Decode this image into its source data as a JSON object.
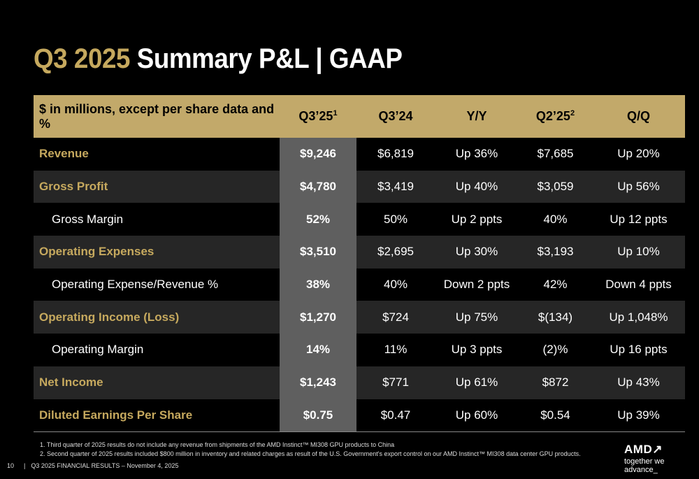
{
  "title": {
    "highlight": "Q3 2025",
    "rest": " Summary P&L  |  GAAP"
  },
  "table": {
    "headers": [
      "$ in millions, except per share data and %",
      "Q3’25",
      "Q3’24",
      "Y/Y",
      "Q2’25",
      "Q/Q"
    ],
    "header_sups": {
      "q3_25": "1",
      "q2_25": "2"
    },
    "rows": [
      {
        "label": "Revenue",
        "type": "main",
        "values": [
          "$9,246",
          "$6,819",
          "Up 36%",
          "$7,685",
          "Up 20%"
        ]
      },
      {
        "label": "Gross Profit",
        "type": "main",
        "values": [
          "$4,780",
          "$3,419",
          "Up 40%",
          "$3,059",
          "Up 56%"
        ]
      },
      {
        "label": "Gross Margin",
        "type": "sub",
        "values": [
          "52%",
          "50%",
          "Up 2 ppts",
          "40%",
          "Up 12 ppts"
        ]
      },
      {
        "label": "Operating Expenses",
        "type": "main",
        "values": [
          "$3,510",
          "$2,695",
          "Up 30%",
          "$3,193",
          "Up 10%"
        ]
      },
      {
        "label": "Operating Expense/Revenue %",
        "type": "sub",
        "values": [
          "38%",
          "40%",
          "Down 2 ppts",
          "42%",
          "Down 4 ppts"
        ]
      },
      {
        "label": "Operating Income (Loss)",
        "type": "main",
        "values": [
          "$1,270",
          "$724",
          "Up 75%",
          "$(134)",
          "Up 1,048%"
        ]
      },
      {
        "label": "Operating Margin",
        "type": "sub",
        "values": [
          "14%",
          "11%",
          "Up 3 ppts",
          "(2)%",
          "Up 16 ppts"
        ]
      },
      {
        "label": "Net Income",
        "type": "main",
        "values": [
          "$1,243",
          "$771",
          "Up 61%",
          "$872",
          "Up 43%"
        ]
      },
      {
        "label": "Diluted Earnings Per Share",
        "type": "main",
        "values": [
          "$0.75",
          "$0.47",
          "Up 60%",
          "$0.54",
          "Up 39%"
        ]
      }
    ]
  },
  "footnotes": [
    "1. Third quarter of 2025 results do not include any revenue from shipments of the AMD Instinct™ MI308 GPU products to China",
    "2. Second quarter of 2025 results included $800 million in inventory and related charges as result of the U.S. Government's export control on our AMD Instinct™ MI308 data center GPU products."
  ],
  "footer": {
    "page": "10",
    "text": "Q3 2025 FINANCIAL RESULTS – November 4, 2025"
  },
  "logo": {
    "brand": "AMD",
    "tagline": "together we advance_"
  },
  "colors": {
    "gold": "#c6a95e",
    "header_bg": "#c2a96a",
    "highlight_col": "#5f5f5f",
    "alt_row": "#262626"
  }
}
